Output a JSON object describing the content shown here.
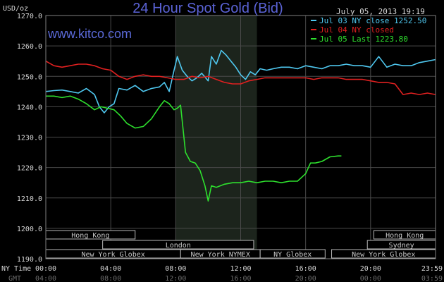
{
  "chart_data": {
    "type": "line",
    "title": "24 Hour Spot Gold (Bid)",
    "website": "www.kitco.com",
    "date_time": "July 05, 2013 19:19",
    "ylabel": "USD/oz",
    "ylim": [
      1190,
      1270
    ],
    "yticks": [
      "1270.0",
      "1260.0",
      "1250.0",
      "1240.0",
      "1230.0",
      "1220.0",
      "1210.0",
      "1200.0",
      "1190.0"
    ],
    "ytick_values": [
      1270,
      1260,
      1250,
      1240,
      1230,
      1220,
      1210,
      1200,
      1190
    ],
    "xlim": [
      0,
      24
    ],
    "ny_time_label": "NY Time",
    "gmt_label": "GMT",
    "ny_time_ticks": [
      "00:00",
      "04:00",
      "08:00",
      "12:00",
      "16:00",
      "20:00",
      "23:59"
    ],
    "gmt_ticks": [
      "04:00",
      "08:00",
      "12:00",
      "16:00",
      "20:00",
      "00:00",
      "03:59"
    ],
    "tick_hours": [
      0,
      4,
      8,
      12,
      16,
      20,
      24
    ],
    "shaded_range": [
      8,
      13
    ],
    "legend_position": "top-right",
    "legend": [
      {
        "text": "Jul 03 NY close 1252.50",
        "color": "#4fc8f0"
      },
      {
        "text": "Jul 04 NY closed",
        "color": "#e02020"
      },
      {
        "text": "Jul 05 Last 1223.80",
        "color": "#2ee02e"
      }
    ],
    "series": [
      {
        "name": "Jul 03 NY close 1252.50",
        "color": "#4fc8f0",
        "x": [
          0,
          0.5,
          1,
          1.5,
          2,
          2.5,
          3,
          3.3,
          3.6,
          3.9,
          4.2,
          4.5,
          5,
          5.5,
          6,
          6.5,
          7,
          7.3,
          7.6,
          7.9,
          8.1,
          8.4,
          8.7,
          9,
          9.3,
          9.6,
          10,
          10.2,
          10.5,
          10.8,
          11.1,
          11.4,
          11.7,
          12,
          12.3,
          12.6,
          12.9,
          13.2,
          13.6,
          14,
          14.5,
          15,
          15.5,
          16,
          16.5,
          17,
          17.5,
          18,
          18.5,
          19,
          19.5,
          20,
          20.5,
          21,
          21.5,
          22,
          22.5,
          23,
          23.5,
          24
        ],
        "y": [
          1245,
          1245.3,
          1245.5,
          1245,
          1244.5,
          1246,
          1244,
          1240,
          1238,
          1240,
          1241,
          1246,
          1245.5,
          1247,
          1245,
          1246,
          1246.5,
          1248,
          1245,
          1252,
          1256.5,
          1252,
          1250,
          1248.5,
          1249.5,
          1251,
          1248.5,
          1256.5,
          1254,
          1258.5,
          1257,
          1255,
          1253,
          1250.5,
          1249,
          1251.5,
          1250.5,
          1252.5,
          1252,
          1252.5,
          1253,
          1253,
          1252.5,
          1253.5,
          1253,
          1252.5,
          1253.5,
          1253.5,
          1254,
          1253.5,
          1253.5,
          1253,
          1256.5,
          1253,
          1254,
          1253.5,
          1253.5,
          1254.5,
          1255,
          1255.5
        ]
      },
      {
        "name": "Jul 04 NY closed",
        "color": "#e02020",
        "x": [
          0,
          0.5,
          1,
          1.5,
          2,
          2.5,
          3,
          3.5,
          4,
          4.5,
          5,
          5.5,
          6,
          6.5,
          7,
          7.5,
          8,
          8.5,
          9,
          9.5,
          10,
          10.5,
          11,
          11.5,
          12,
          12.5,
          13,
          13.5,
          14,
          14.5,
          15,
          15.5,
          16,
          16.5,
          17,
          17.5,
          18,
          18.5,
          19,
          19.5,
          20,
          20.5,
          21,
          21.5,
          22,
          22.5,
          23,
          23.5,
          24
        ],
        "y": [
          1255,
          1253.5,
          1253,
          1253.5,
          1254,
          1254,
          1253.5,
          1252.5,
          1252,
          1250,
          1249,
          1250,
          1250.5,
          1250,
          1250,
          1249.5,
          1249,
          1249,
          1250,
          1249.5,
          1250,
          1249,
          1248,
          1247.5,
          1247.5,
          1248.5,
          1249,
          1249.5,
          1249.5,
          1249.5,
          1249.5,
          1249.5,
          1249.5,
          1249,
          1249.5,
          1249.5,
          1249.5,
          1249,
          1249,
          1249,
          1248.5,
          1248,
          1248,
          1247.5,
          1244,
          1244.5,
          1244,
          1244.5,
          1244
        ]
      },
      {
        "name": "Jul 05 Last 1223.80",
        "color": "#2ee02e",
        "x": [
          0,
          0.5,
          1,
          1.5,
          2,
          2.5,
          3,
          3.4,
          3.8,
          4.2,
          4.6,
          5,
          5.5,
          6,
          6.5,
          7,
          7.3,
          7.6,
          7.9,
          8.1,
          8.3,
          8.6,
          8.9,
          9.2,
          9.5,
          9.8,
          10,
          10.2,
          10.5,
          11,
          11.5,
          12,
          12.5,
          13,
          13.5,
          14,
          14.5,
          15,
          15.5,
          16,
          16.3,
          16.6,
          17,
          17.5,
          18,
          18.2
        ],
        "y": [
          1243.5,
          1243.5,
          1243,
          1243.5,
          1242.5,
          1241,
          1239,
          1240,
          1239.5,
          1239,
          1237,
          1234.5,
          1233,
          1233.5,
          1236,
          1240,
          1242,
          1241,
          1239,
          1239.5,
          1240.5,
          1225,
          1222,
          1221.5,
          1219,
          1214,
          1209,
          1214,
          1213.5,
          1214.5,
          1215,
          1215,
          1215.5,
          1215,
          1215.5,
          1215.5,
          1215,
          1215.5,
          1215.5,
          1218,
          1221.5,
          1221.5,
          1222,
          1223.5,
          1223.8,
          1223.8
        ]
      }
    ],
    "sessions": [
      {
        "label": "Hong Kong",
        "row": 1,
        "start": 0,
        "end": 5.5,
        "text_color": "#c8c8c8"
      },
      {
        "label": "Hong Kong",
        "row": 1,
        "start": 20.2,
        "end": 24,
        "text_color": "#c8c8c8"
      },
      {
        "label": "London",
        "row": 2,
        "start": 3.5,
        "end": 12.8,
        "text_color": "#c8c8c8"
      },
      {
        "label": "Sydney",
        "row": 2,
        "start": 19.8,
        "end": 24,
        "text_color": "#c8c8c8"
      },
      {
        "label": "New York Globex",
        "row": 3,
        "start": 0,
        "end": 8.3,
        "text_color": "#c8c8c8"
      },
      {
        "label": "New York NYMEX",
        "row": 3,
        "start": 8.3,
        "end": 13.2,
        "text_color": "#c8c8c8"
      },
      {
        "label": "NY Globex",
        "row": 3,
        "start": 13.2,
        "end": 17.2,
        "text_color": "#c8c8c8"
      },
      {
        "label": "New York Globex",
        "row": 3,
        "start": 17.6,
        "end": 24,
        "text_color": "#c8c8c8"
      }
    ],
    "grid": true
  }
}
